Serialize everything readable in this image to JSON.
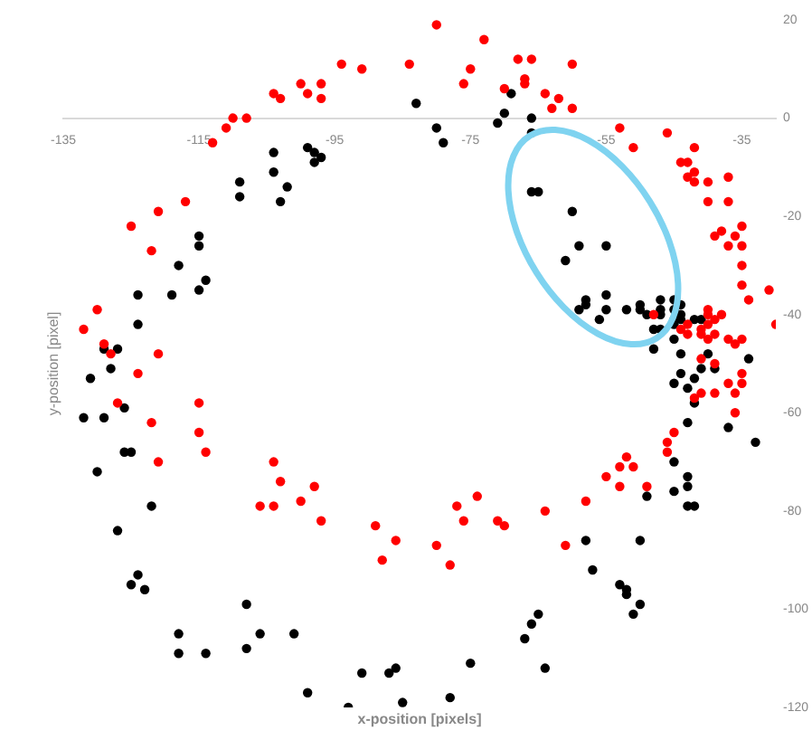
{
  "chart_data": {
    "type": "scatter",
    "xlabel": "x-position [pixels]",
    "ylabel": "y-position [pixel]",
    "xlim": [
      -135,
      -30
    ],
    "ylim": [
      -120,
      20
    ],
    "xticks": [
      -135,
      -115,
      -95,
      -75,
      -55,
      -35
    ],
    "yticks": [
      -120,
      -100,
      -80,
      -60,
      -40,
      -20,
      0,
      20
    ],
    "grid": false,
    "legend": false,
    "marker": "circle",
    "series": [
      {
        "color": "#ff0000",
        "x": [
          -80,
          -73,
          -84,
          -94,
          -91,
          -75,
          -76,
          -68,
          -66,
          -67,
          -67,
          -70,
          -60,
          -64,
          -62,
          -63,
          -60,
          -100,
          -99,
          -97,
          -97,
          -104,
          -103,
          -110,
          -108,
          -111,
          -113,
          -117,
          -121,
          -125,
          -122,
          -53,
          -51,
          -46,
          -42,
          -44,
          -43,
          -42,
          -43,
          -42,
          -40,
          -40,
          -37,
          -37,
          -35,
          -36,
          -38,
          -39,
          -37,
          -35,
          -130,
          -132,
          -129,
          -128,
          -121,
          -124,
          -127,
          -115,
          -122,
          -115,
          -114,
          -121,
          -104,
          -103,
          -98,
          -35,
          -35,
          -34,
          -31,
          -30,
          -40,
          -40,
          -48,
          -43,
          -41,
          -40,
          -39,
          -38,
          -41,
          -39,
          -44,
          -43,
          -40,
          -37,
          -35,
          -36,
          -41,
          -39,
          -35,
          -35,
          -37,
          -36,
          -39,
          -41,
          -42,
          -36,
          -45,
          -46,
          -46,
          -52,
          -51,
          -53,
          -55,
          -53,
          -49,
          -106,
          -104,
          -100,
          -97,
          -89,
          -86,
          -88,
          -80,
          -78,
          -77,
          -74,
          -76,
          -71,
          -70,
          -64,
          -61,
          -58
        ],
        "values": [
          19,
          16,
          11,
          11,
          10,
          10,
          7,
          12,
          12,
          8,
          7,
          6,
          11,
          5,
          4,
          2,
          2,
          7,
          5,
          7,
          4,
          5,
          4,
          0,
          0,
          -2,
          -5,
          -17,
          -19,
          -22,
          -27,
          -2,
          -6,
          -3,
          -6,
          -9,
          -9,
          -11,
          -12,
          -13,
          -13,
          -17,
          -12,
          -17,
          -22,
          -24,
          -23,
          -24,
          -26,
          -26,
          -39,
          -43,
          -46,
          -48,
          -48,
          -52,
          -58,
          -58,
          -62,
          -64,
          -68,
          -70,
          -70,
          -74,
          -75,
          -30,
          -34,
          -37,
          -35,
          -42,
          -39,
          -40,
          -40,
          -42,
          -43,
          -42,
          -41,
          -40,
          -44,
          -44,
          -43,
          -44,
          -45,
          -45,
          -45,
          -46,
          -49,
          -50,
          -52,
          -54,
          -54,
          -56,
          -56,
          -56,
          -57,
          -60,
          -64,
          -66,
          -68,
          -69,
          -71,
          -71,
          -73,
          -75,
          -75,
          -79,
          -79,
          -78,
          -82,
          -83,
          -86,
          -90,
          -87,
          -91,
          -79,
          -77,
          -82,
          -82,
          -83,
          -80,
          -87,
          -78
        ]
      },
      {
        "color": "#000000",
        "x": [
          -83,
          -69,
          -70,
          -71,
          -66,
          -80,
          -79,
          -66,
          -99,
          -98,
          -97,
          -98,
          -104,
          -104,
          -102,
          -103,
          -109,
          -109,
          -115,
          -115,
          -66,
          -65,
          -60,
          -59,
          -55,
          -118,
          -114,
          -115,
          -124,
          -119,
          -124,
          -129,
          -127,
          -128,
          -131,
          -126,
          -132,
          -129,
          -126,
          -125,
          -130,
          -61,
          -58,
          -58,
          -59,
          -55,
          -55,
          -56,
          -52,
          -50,
          -50,
          -49,
          -47,
          -47,
          -47,
          -45,
          -44,
          -45,
          -45,
          -45,
          -47,
          -48,
          -44,
          -44,
          -42,
          -41,
          -45,
          -48,
          -44,
          -40,
          -34,
          -41,
          -39,
          -44,
          -42,
          -45,
          -43,
          -42,
          -43,
          -37,
          -33,
          -45,
          -43,
          -43,
          -122,
          -127,
          -124,
          -125,
          -123,
          -118,
          -118,
          -114,
          -108,
          -106,
          -108,
          -101,
          -99,
          -93,
          -91,
          -87,
          -86,
          -85,
          -78,
          -75,
          -67,
          -66,
          -65,
          -64,
          -58,
          -57,
          -53,
          -52,
          -52,
          -50,
          -51,
          -50,
          -49,
          -45,
          -43,
          -42
        ],
        "values": [
          3,
          5,
          1,
          -1,
          0,
          -2,
          -5,
          -3,
          -6,
          -7,
          -8,
          -9,
          -7,
          -11,
          -14,
          -17,
          -13,
          -16,
          -24,
          -26,
          -15,
          -15,
          -19,
          -26,
          -26,
          -30,
          -33,
          -35,
          -36,
          -36,
          -42,
          -47,
          -47,
          -51,
          -53,
          -59,
          -61,
          -61,
          -68,
          -68,
          -72,
          -29,
          -37,
          -38,
          -39,
          -36,
          -39,
          -41,
          -39,
          -39,
          -38,
          -40,
          -37,
          -39,
          -40,
          -37,
          -38,
          -39,
          -41,
          -42,
          -43,
          -43,
          -41,
          -40,
          -41,
          -41,
          -45,
          -47,
          -48,
          -48,
          -49,
          -51,
          -51,
          -52,
          -53,
          -54,
          -55,
          -58,
          -62,
          -63,
          -66,
          -70,
          -73,
          -75,
          -79,
          -84,
          -93,
          -95,
          -96,
          -105,
          -109,
          -109,
          -108,
          -105,
          -99,
          -105,
          -117,
          -120,
          -113,
          -113,
          -112,
          -119,
          -118,
          -111,
          -106,
          -103,
          -101,
          -112,
          -86,
          -92,
          -95,
          -96,
          -97,
          -99,
          -101,
          -86,
          -77,
          -76,
          -79,
          -79
        ]
      }
    ]
  }
}
